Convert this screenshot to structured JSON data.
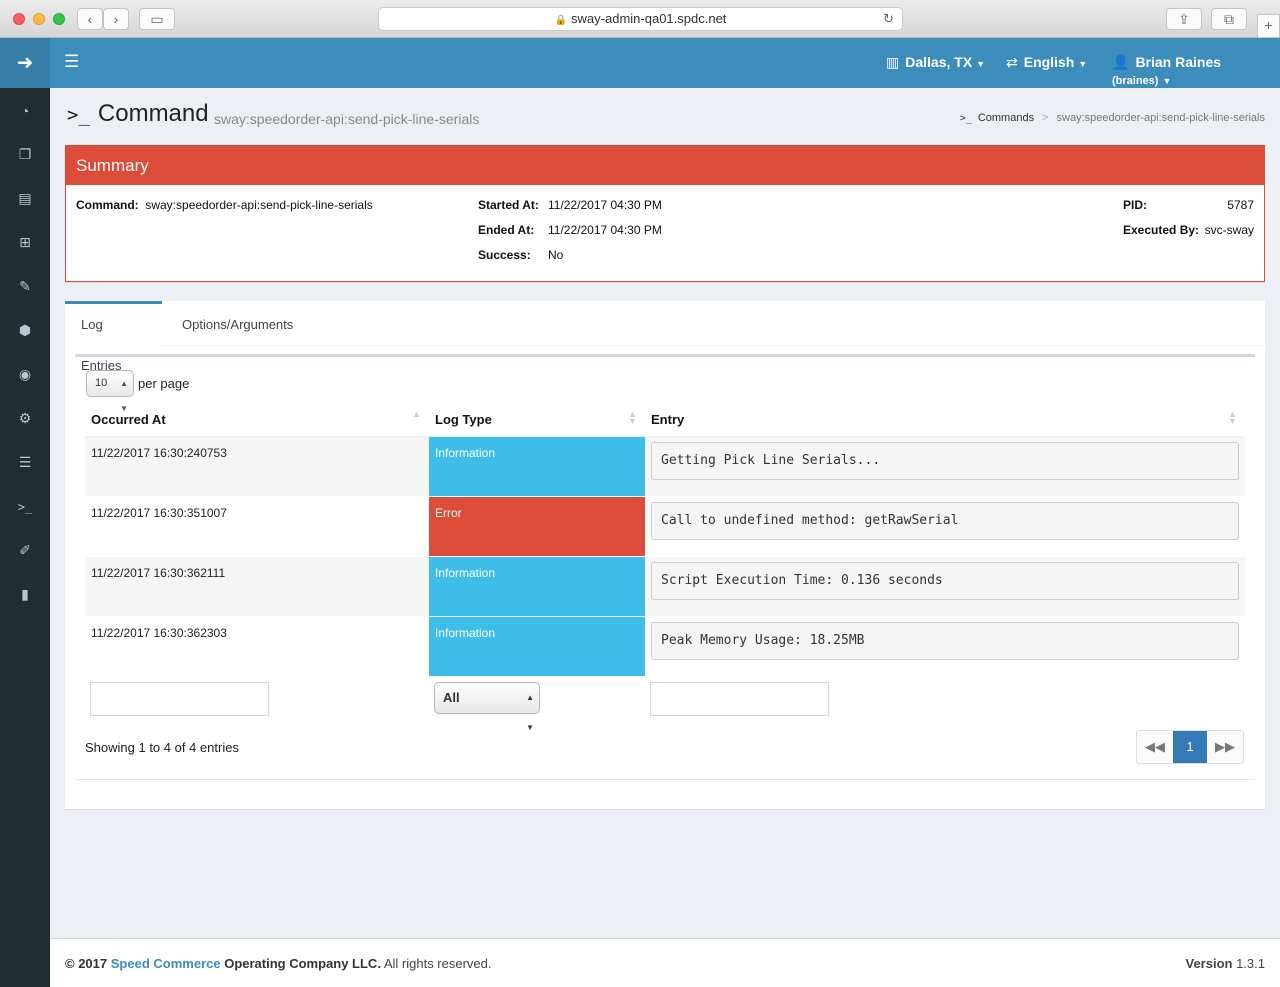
{
  "browser": {
    "url": "sway-admin-qa01.spdc.net"
  },
  "navbar": {
    "location": "Dallas, TX",
    "language": "English",
    "user_name": "Brian Raines",
    "user_login": "(braines)"
  },
  "header": {
    "title": "Command",
    "subtitle": "sway:speedorder-api:send-pick-line-serials",
    "breadcrumb": [
      "Commands",
      "sway:speedorder-api:send-pick-line-serials"
    ]
  },
  "summary": {
    "title": "Summary",
    "command_label": "Command:",
    "command": "sway:speedorder-api:send-pick-line-serials",
    "started_label": "Started At:",
    "started": "11/22/2017 04:30 PM",
    "ended_label": "Ended At:",
    "ended": "11/22/2017 04:30 PM",
    "success_label": "Success:",
    "success": "No",
    "pid_label": "PID:",
    "pid": "5787",
    "executed_label": "Executed By:",
    "executed": "svc-sway"
  },
  "tabs": [
    "Log Entries",
    "Options/Arguments"
  ],
  "log": {
    "per_page": "10",
    "per_page_label": "per page",
    "columns": [
      "Occurred At",
      "Log Type",
      "Entry"
    ],
    "rows": [
      {
        "occurred": "11/22/2017 16:30:240753",
        "type": "Information",
        "entry": "Getting Pick Line Serials..."
      },
      {
        "occurred": "11/22/2017 16:30:351007",
        "type": "Error",
        "entry": "Call to undefined method: getRawSerial"
      },
      {
        "occurred": "11/22/2017 16:30:362111",
        "type": "Information",
        "entry": "Script Execution Time: 0.136 seconds"
      },
      {
        "occurred": "11/22/2017 16:30:362303",
        "type": "Information",
        "entry": "Peak Memory Usage: 18.25MB"
      }
    ],
    "type_filter": "All",
    "showing": "Showing 1 to 4 of 4 entries",
    "page": "1"
  },
  "footer": {
    "copyright_prefix": "© 2017",
    "company_link": "Speed Commerce",
    "company_suffix": "Operating Company LLC.",
    "rights": "All rights reserved.",
    "version_label": "Version",
    "version": "1.3.1"
  },
  "colors": {
    "brand": "#367fa9",
    "navbar": "#3c8dbc",
    "sidebar": "#222d32",
    "danger": "#dd4b39",
    "info": "#3ebde9"
  }
}
